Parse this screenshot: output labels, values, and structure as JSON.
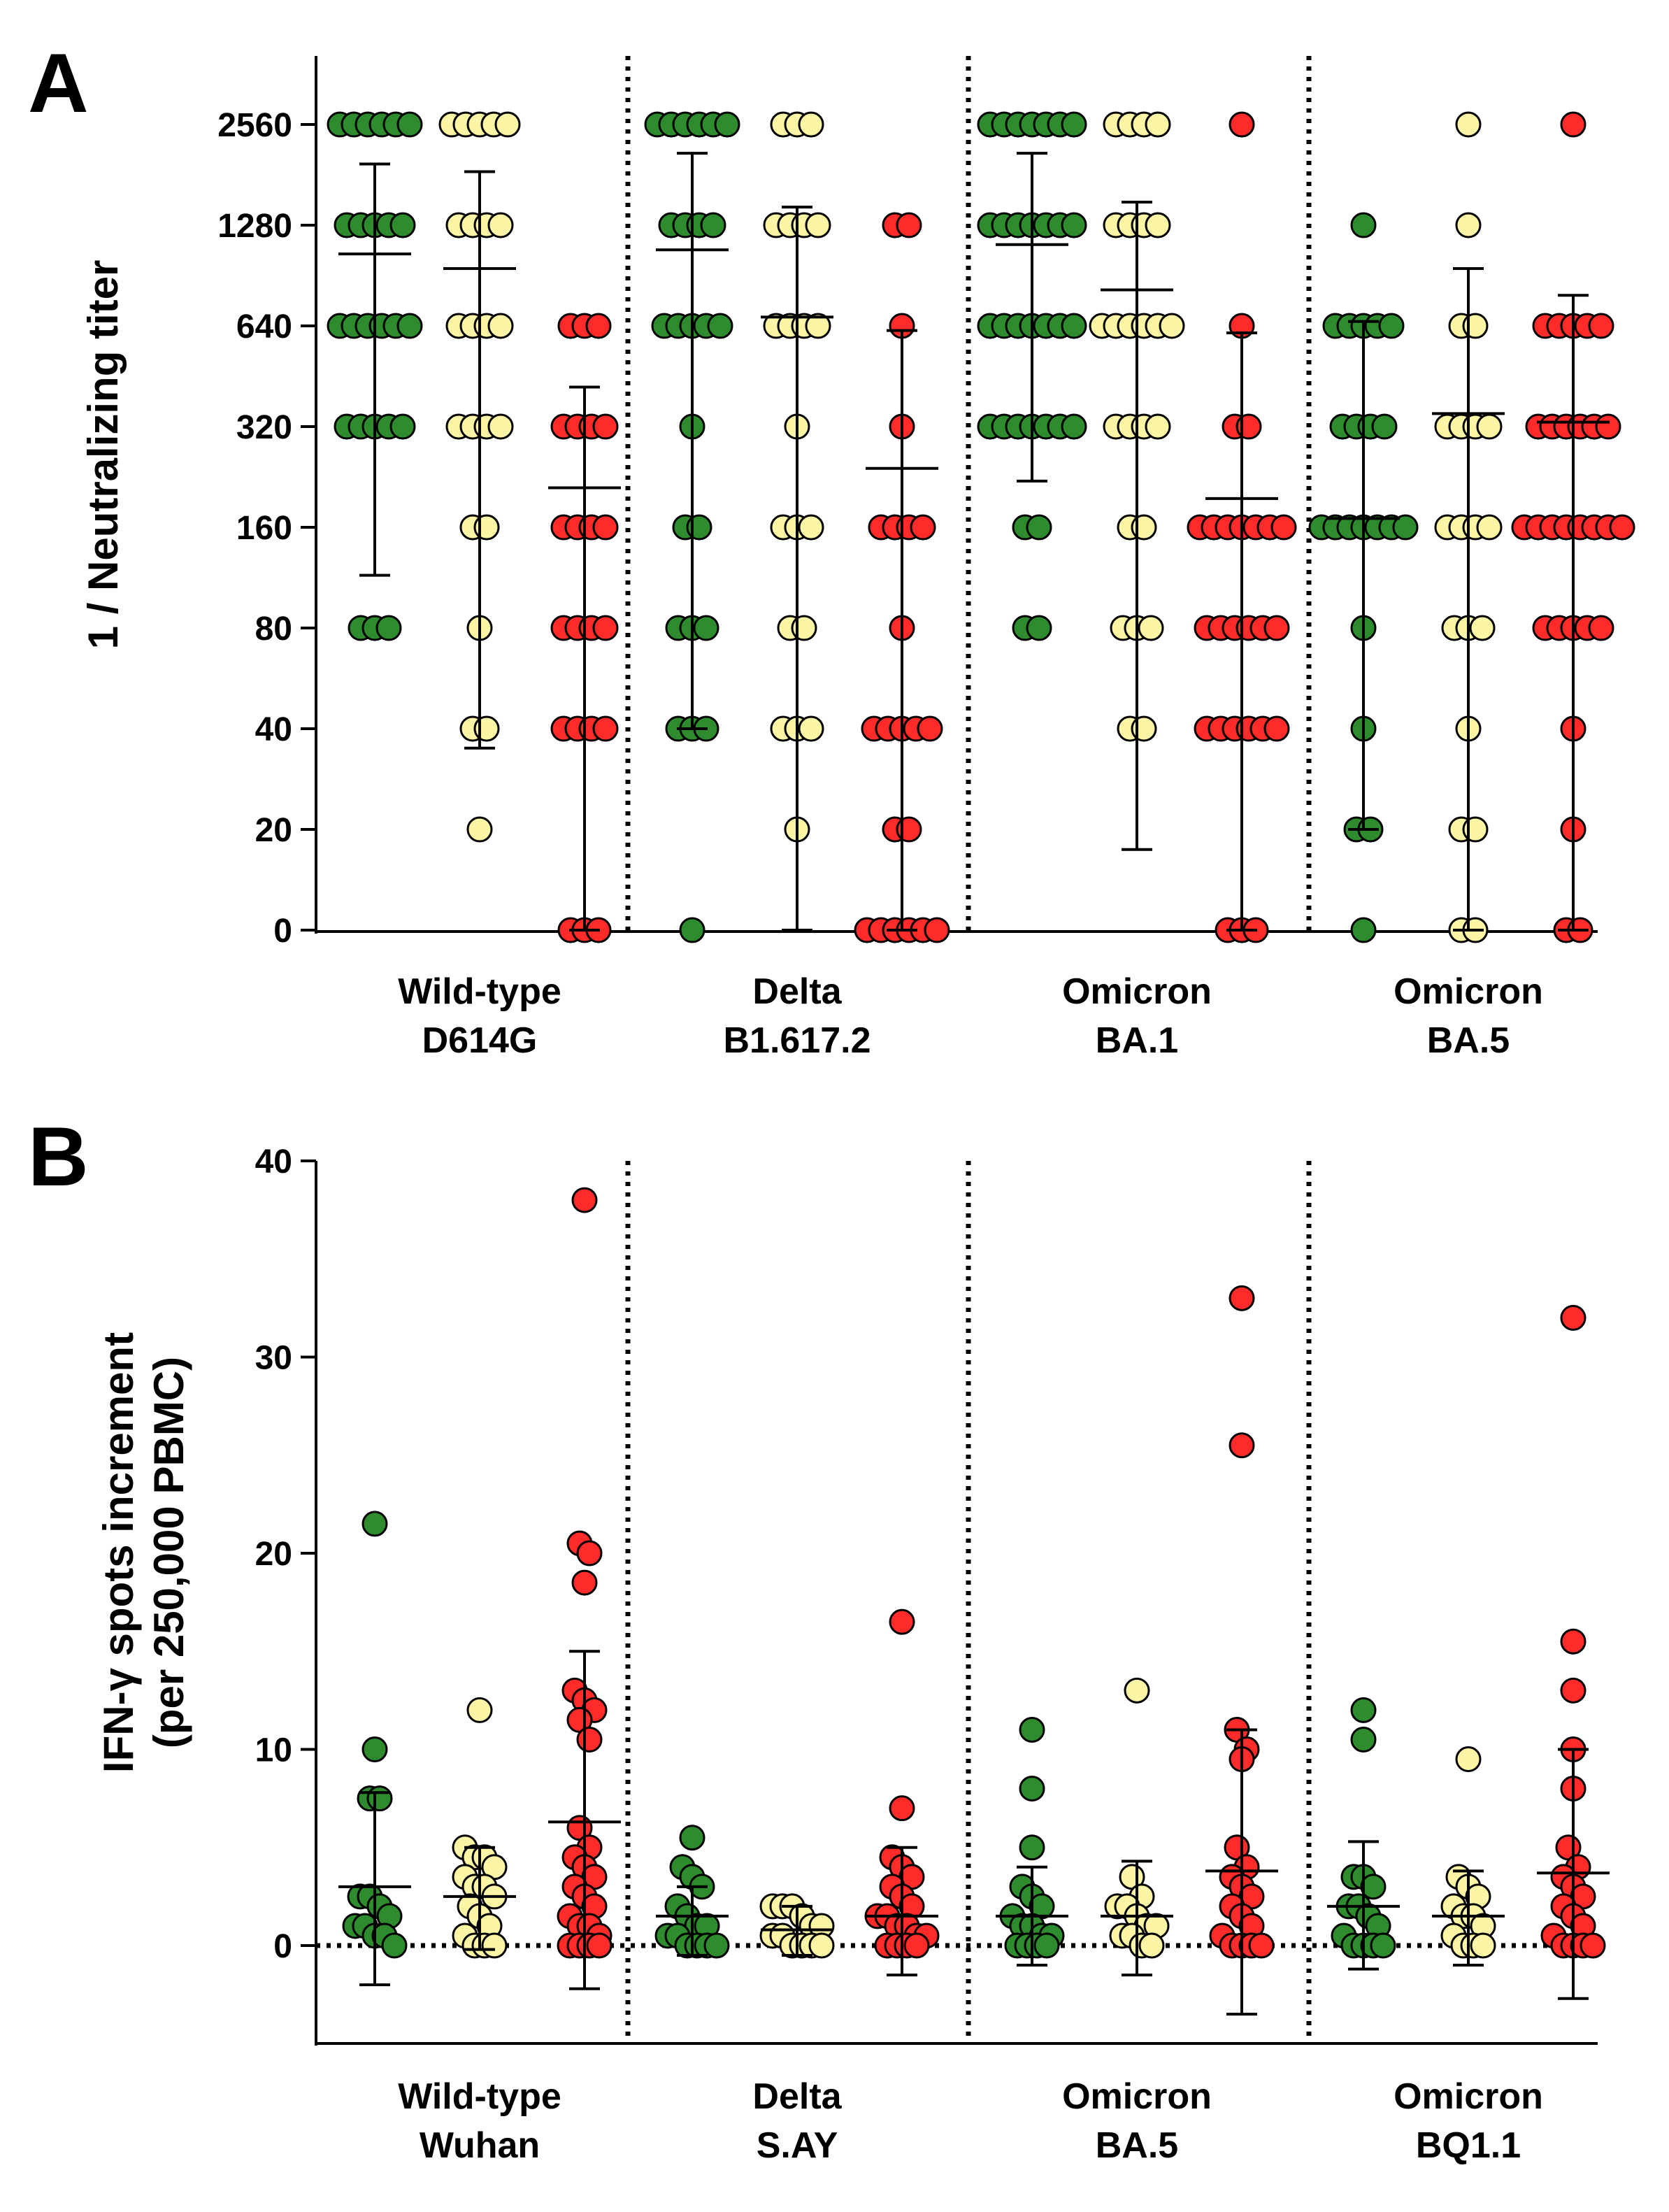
{
  "colors": {
    "group1": "#2e8b2e",
    "group2": "#fdf5a6",
    "group3": "#ff2a2a",
    "outline": "#000000",
    "background": "#ffffff"
  },
  "chart_data": [
    {
      "panel": "A",
      "type": "scatter",
      "ylabel": "1 / Neutralizing titer",
      "yscale": "log2 (0 plotted at baseline)",
      "yticks": [
        "0",
        "20",
        "40",
        "80",
        "160",
        "320",
        "640",
        "1280",
        "2560"
      ],
      "categories": [
        {
          "line1": "Wild-type",
          "line2": "D614G"
        },
        {
          "line1": "Delta",
          "line2": "B1.617.2"
        },
        {
          "line1": "Omicron",
          "line2": "BA.1"
        },
        {
          "line1": "Omicron",
          "line2": "BA.5"
        }
      ],
      "series": [
        {
          "color": "group1",
          "values": [
            [
              80,
              80,
              80,
              320,
              320,
              320,
              320,
              320,
              640,
              640,
              640,
              640,
              640,
              640,
              1280,
              1280,
              1280,
              1280,
              1280,
              2560,
              2560,
              2560,
              2560,
              2560,
              2560
            ],
            [
              0,
              40,
              40,
              40,
              80,
              80,
              80,
              160,
              160,
              320,
              640,
              640,
              640,
              640,
              640,
              1280,
              1280,
              1280,
              1280,
              2560,
              2560,
              2560,
              2560,
              2560,
              2560
            ],
            [
              80,
              80,
              160,
              160,
              320,
              320,
              320,
              320,
              320,
              320,
              320,
              640,
              640,
              640,
              640,
              640,
              640,
              640,
              1280,
              1280,
              1280,
              1280,
              1280,
              1280,
              1280,
              2560,
              2560,
              2560,
              2560,
              2560,
              2560,
              2560
            ],
            [
              0,
              20,
              20,
              40,
              80,
              160,
              160,
              160,
              160,
              160,
              160,
              160,
              320,
              320,
              320,
              320,
              640,
              640,
              640,
              640,
              640,
              1280
            ]
          ],
          "mean": [
            1050,
            1080,
            1120,
            170
          ],
          "sd_low": [
            115,
            40,
            220,
            20
          ],
          "sd_high": [
            1950,
            2100,
            2100,
            660
          ]
        },
        {
          "color": "group2",
          "values": [
            [
              20,
              40,
              40,
              80,
              160,
              160,
              320,
              320,
              320,
              320,
              640,
              640,
              640,
              640,
              1280,
              1280,
              1280,
              1280,
              2560,
              2560,
              2560,
              2560,
              2560
            ],
            [
              20,
              40,
              40,
              40,
              80,
              80,
              160,
              160,
              160,
              320,
              640,
              640,
              640,
              640,
              1280,
              1280,
              1280,
              1280,
              2560,
              2560,
              2560
            ],
            [
              40,
              40,
              80,
              80,
              80,
              160,
              160,
              320,
              320,
              320,
              320,
              640,
              640,
              640,
              640,
              640,
              640,
              1280,
              1280,
              1280,
              1280,
              2560,
              2560,
              2560,
              2560
            ],
            [
              0,
              0,
              20,
              20,
              40,
              80,
              80,
              80,
              160,
              160,
              160,
              160,
              320,
              320,
              320,
              320,
              640,
              640,
              1280,
              2560
            ]
          ],
          "mean": [
            950,
            680,
            820,
            350
          ],
          "sd_low": [
            35,
            0,
            16,
            0
          ],
          "sd_high": [
            1850,
            1450,
            1500,
            950
          ]
        },
        {
          "color": "group3",
          "values": [
            [
              0,
              0,
              0,
              40,
              40,
              40,
              40,
              80,
              80,
              80,
              80,
              160,
              160,
              160,
              160,
              320,
              320,
              320,
              320,
              640,
              640,
              640
            ],
            [
              0,
              0,
              0,
              0,
              0,
              0,
              20,
              20,
              40,
              40,
              40,
              40,
              40,
              80,
              160,
              160,
              160,
              160,
              320,
              640,
              1280,
              1280
            ],
            [
              0,
              0,
              0,
              40,
              40,
              40,
              40,
              40,
              40,
              80,
              80,
              80,
              80,
              80,
              80,
              160,
              160,
              160,
              160,
              160,
              160,
              160,
              320,
              320,
              640,
              2560
            ],
            [
              0,
              0,
              20,
              40,
              80,
              80,
              80,
              80,
              80,
              160,
              160,
              160,
              160,
              160,
              160,
              160,
              160,
              320,
              320,
              320,
              320,
              320,
              320,
              640,
              640,
              640,
              640,
              640,
              2560
            ]
          ],
          "mean": [
            210,
            240,
            195,
            330
          ],
          "sd_low": [
            0,
            0,
            0,
            0
          ],
          "sd_high": [
            420,
            620,
            610,
            790
          ]
        }
      ]
    },
    {
      "panel": "B",
      "type": "scatter",
      "ylabel_line1": "IFN-γ spots increment",
      "ylabel_line2": "(per 250,000 PBMC)",
      "ylim": [
        -5,
        40
      ],
      "yticks": [
        0,
        10,
        20,
        30,
        40
      ],
      "reference_line": 0,
      "categories": [
        {
          "line1": "Wild-type",
          "line2": "Wuhan"
        },
        {
          "line1": "Delta",
          "line2": "S.AY"
        },
        {
          "line1": "Omicron",
          "line2": "BA.5"
        },
        {
          "line1": "Omicron",
          "line2": "BQ1.1"
        }
      ],
      "series": [
        {
          "color": "group1",
          "values": [
            [
              21.5,
              10,
              7.5,
              7.5,
              2.5,
              2.5,
              2,
              1.5,
              1,
              1,
              0.5,
              0.5,
              0
            ],
            [
              5.5,
              4,
              3.5,
              3,
              2,
              1.5,
              1,
              1,
              0.5,
              0.5,
              0,
              0,
              0,
              0
            ],
            [
              11,
              8,
              5,
              3,
              2.5,
              2,
              1.5,
              1,
              1,
              0.5,
              0.5,
              0,
              0,
              0,
              0
            ],
            [
              12,
              10.5,
              3.5,
              3.5,
              3,
              2,
              2,
              1.5,
              1,
              0.5,
              0,
              0,
              0,
              0
            ]
          ],
          "mean": [
            3,
            1.5,
            1.5,
            2
          ],
          "sd_low": [
            -2,
            -0.5,
            -1,
            -1.2
          ],
          "sd_high": [
            7.8,
            3,
            4,
            5.3
          ]
        },
        {
          "color": "group2",
          "values": [
            [
              12,
              5,
              4.5,
              4.5,
              4,
              3.5,
              3,
              3,
              2.5,
              2,
              1.5,
              1,
              0.5,
              0,
              0,
              0
            ],
            [
              2,
              2,
              2,
              1.5,
              1,
              1,
              0.5,
              0.5,
              0,
              0,
              0,
              0
            ],
            [
              13,
              3.5,
              2.5,
              2,
              2,
              1.5,
              1,
              1,
              0.5,
              0.5,
              0,
              0
            ],
            [
              9.5,
              3.5,
              3,
              2.5,
              2,
              1.5,
              1.5,
              1,
              0.5,
              0,
              0,
              0
            ]
          ],
          "mean": [
            2.5,
            0.8,
            1.5,
            1.5
          ],
          "sd_low": [
            -0.2,
            -0.5,
            -1.5,
            -1
          ],
          "sd_high": [
            5,
            2,
            4.3,
            3.8
          ]
        },
        {
          "color": "group3",
          "values": [
            [
              38,
              20.5,
              20,
              18.5,
              13,
              12.5,
              12,
              11.5,
              10.5,
              6,
              5,
              4.5,
              4,
              3.5,
              3,
              2.5,
              2,
              1.5,
              1,
              1,
              0.5,
              0,
              0,
              0,
              0
            ],
            [
              16.5,
              7,
              4.5,
              4,
              3.5,
              3,
              2.5,
              2,
              1.5,
              1.5,
              1,
              1,
              0.5,
              0.5,
              0,
              0,
              0,
              0
            ],
            [
              33,
              25.5,
              11,
              10,
              9.5,
              5,
              4,
              3.5,
              3,
              2.5,
              2,
              1.5,
              1,
              0.5,
              0,
              0,
              0,
              0
            ],
            [
              32,
              15.5,
              13,
              10,
              8,
              5,
              4,
              3.5,
              3,
              2.5,
              2,
              1.5,
              1,
              0.5,
              0,
              0,
              0,
              0
            ]
          ],
          "mean": [
            6.3,
            1.5,
            3.8,
            3.7
          ],
          "sd_low": [
            -2.2,
            -1.5,
            -3.5,
            -2.7
          ],
          "sd_high": [
            15,
            5,
            11,
            10
          ]
        }
      ]
    }
  ]
}
